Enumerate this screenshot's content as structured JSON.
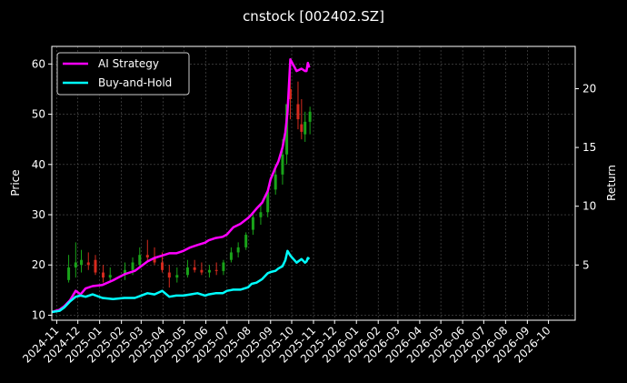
{
  "chart_data": {
    "type": "line",
    "title": "cnstock [002402.SZ]",
    "ylabel": "Price",
    "y2label": "Return",
    "ylim": [
      9,
      63.5
    ],
    "y2lim": [
      0.3,
      23.6
    ],
    "yticks": [
      10,
      20,
      30,
      40,
      50,
      60
    ],
    "y2ticks": [
      5,
      10,
      15,
      20
    ],
    "x_months": [
      "2024-11",
      "2024-12",
      "2025-01",
      "2025-02",
      "2025-03",
      "2025-04",
      "2025-05",
      "2025-06",
      "2025-07",
      "2025-08",
      "2025-09",
      "2025-10",
      "2025-11",
      "2025-12",
      "2026-01",
      "2026-02",
      "2026-03",
      "2026-04",
      "2026-05",
      "2026-06",
      "2026-07",
      "2026-08",
      "2026-09",
      "2026-10"
    ],
    "xlim": [
      "2024-10-25",
      "2026-11-08"
    ],
    "grid": true,
    "legend_position": "top-left",
    "candles": {
      "dates": [
        "2024-11-18",
        "2024-11-28",
        "2024-12-06",
        "2024-12-16",
        "2024-12-26",
        "2025-01-06",
        "2025-01-16",
        "2025-02-06",
        "2025-02-17",
        "2025-02-27",
        "2025-03-10",
        "2025-03-20",
        "2025-03-31",
        "2025-04-10",
        "2025-04-21",
        "2025-05-06",
        "2025-05-16",
        "2025-05-26",
        "2025-06-06",
        "2025-06-16",
        "2025-06-26",
        "2025-07-07",
        "2025-07-17",
        "2025-07-28",
        "2025-08-07",
        "2025-08-18",
        "2025-08-28",
        "2025-09-08",
        "2025-09-18",
        "2025-09-24",
        "2025-09-29",
        "2025-10-10",
        "2025-10-15",
        "2025-10-20",
        "2025-10-27"
      ],
      "open": [
        17.0,
        19.5,
        20.0,
        20.5,
        21.0,
        18.5,
        17.5,
        18.0,
        19.0,
        20.0,
        22.0,
        21.5,
        20.5,
        18.5,
        17.5,
        18.0,
        19.5,
        19.0,
        18.5,
        19.0,
        18.8,
        21.0,
        22.5,
        23.5,
        27.0,
        29.5,
        30.5,
        35.0,
        38.0,
        42.0,
        55.0,
        52.0,
        48.0,
        46.0,
        48.5
      ],
      "high": [
        22.0,
        24.5,
        23.0,
        22.5,
        22.0,
        20.0,
        19.5,
        20.5,
        21.5,
        23.5,
        25.0,
        23.5,
        22.5,
        20.0,
        19.5,
        21.0,
        21.0,
        20.5,
        20.0,
        20.5,
        21.0,
        23.5,
        24.5,
        26.5,
        30.5,
        32.0,
        34.0,
        40.0,
        45.0,
        52.0,
        60.5,
        56.5,
        53.0,
        50.5,
        51.5
      ],
      "low": [
        16.5,
        17.5,
        18.5,
        19.0,
        18.0,
        16.5,
        16.5,
        17.0,
        18.0,
        19.5,
        20.5,
        20.0,
        18.5,
        15.5,
        16.5,
        17.5,
        18.5,
        18.0,
        17.5,
        18.0,
        18.0,
        20.5,
        21.5,
        23.0,
        26.0,
        28.0,
        29.5,
        34.0,
        36.0,
        40.0,
        49.0,
        47.0,
        45.0,
        44.5,
        46.0
      ],
      "close": [
        19.5,
        20.5,
        21.0,
        20.0,
        18.5,
        17.5,
        18.0,
        19.0,
        20.5,
        22.0,
        21.5,
        20.5,
        19.0,
        17.5,
        18.0,
        19.5,
        19.0,
        18.5,
        19.0,
        18.8,
        20.5,
        22.5,
        23.5,
        26.0,
        29.5,
        30.5,
        34.5,
        38.0,
        42.0,
        52.0,
        53.0,
        49.0,
        46.5,
        48.5,
        50.5
      ]
    },
    "series": [
      {
        "name": "AI Strategy",
        "color": "#ff00ff",
        "axis": "right",
        "x": [
          "2024-10-25",
          "2024-11-05",
          "2024-11-12",
          "2024-11-20",
          "2024-11-28",
          "2024-12-05",
          "2024-12-12",
          "2024-12-22",
          "2025-01-05",
          "2025-01-20",
          "2025-02-05",
          "2025-02-20",
          "2025-03-01",
          "2025-03-10",
          "2025-03-20",
          "2025-03-31",
          "2025-04-10",
          "2025-04-20",
          "2025-04-30",
          "2025-05-10",
          "2025-05-20",
          "2025-05-31",
          "2025-06-05",
          "2025-06-15",
          "2025-06-25",
          "2025-07-01",
          "2025-07-10",
          "2025-07-20",
          "2025-07-31",
          "2025-08-05",
          "2025-08-12",
          "2025-08-20",
          "2025-08-28",
          "2025-09-01",
          "2025-09-08",
          "2025-09-12",
          "2025-09-18",
          "2025-09-22",
          "2025-09-25",
          "2025-09-29",
          "2025-10-08",
          "2025-10-15",
          "2025-10-20",
          "2025-10-22",
          "2025-10-24",
          "2025-10-26"
        ],
        "values": [
          1.0,
          1.2,
          1.5,
          2.0,
          2.8,
          2.5,
          3.0,
          3.2,
          3.3,
          3.7,
          4.2,
          4.5,
          4.9,
          5.3,
          5.6,
          5.8,
          6.0,
          6.0,
          6.2,
          6.5,
          6.7,
          6.9,
          7.1,
          7.3,
          7.4,
          7.6,
          8.2,
          8.5,
          9.0,
          9.3,
          9.8,
          10.3,
          11.3,
          12.3,
          13.3,
          13.8,
          15.0,
          16.3,
          18.0,
          22.5,
          21.5,
          21.7,
          21.5,
          21.5,
          22.2,
          21.8
        ]
      },
      {
        "name": "Buy-and-Hold",
        "color": "#00ffff",
        "axis": "right",
        "x": [
          "2024-10-25",
          "2024-11-05",
          "2024-11-12",
          "2024-11-20",
          "2024-11-28",
          "2024-12-05",
          "2024-12-12",
          "2024-12-22",
          "2025-01-05",
          "2025-01-20",
          "2025-02-05",
          "2025-02-20",
          "2025-03-01",
          "2025-03-10",
          "2025-03-20",
          "2025-03-31",
          "2025-04-10",
          "2025-04-20",
          "2025-04-30",
          "2025-05-10",
          "2025-05-20",
          "2025-05-31",
          "2025-06-05",
          "2025-06-15",
          "2025-06-25",
          "2025-07-01",
          "2025-07-10",
          "2025-07-20",
          "2025-07-31",
          "2025-08-05",
          "2025-08-12",
          "2025-08-20",
          "2025-08-28",
          "2025-09-01",
          "2025-09-08",
          "2025-09-12",
          "2025-09-18",
          "2025-09-22",
          "2025-09-25",
          "2025-09-29",
          "2025-10-08",
          "2025-10-15",
          "2025-10-20",
          "2025-10-22",
          "2025-10-24",
          "2025-10-26"
        ],
        "values": [
          1.0,
          1.1,
          1.4,
          1.9,
          2.3,
          2.4,
          2.3,
          2.5,
          2.2,
          2.1,
          2.2,
          2.2,
          2.4,
          2.6,
          2.5,
          2.8,
          2.3,
          2.4,
          2.4,
          2.5,
          2.6,
          2.4,
          2.5,
          2.6,
          2.6,
          2.8,
          2.9,
          2.9,
          3.1,
          3.4,
          3.5,
          3.8,
          4.3,
          4.4,
          4.5,
          4.7,
          4.9,
          5.4,
          6.2,
          5.8,
          5.2,
          5.5,
          5.2,
          5.3,
          5.6,
          5.5
        ]
      }
    ]
  }
}
